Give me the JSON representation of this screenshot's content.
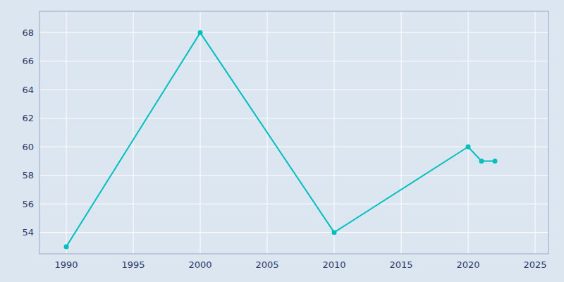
{
  "chart_data": {
    "type": "line",
    "x": [
      1990,
      2000,
      2010,
      2020,
      2021,
      2022
    ],
    "values": [
      53,
      68,
      54,
      60,
      59,
      59
    ],
    "color": "#00BFBF",
    "marker": "circle",
    "xlim": [
      1988,
      2026
    ],
    "ylim": [
      52.5,
      69.5
    ],
    "xticks": [
      1990,
      1995,
      2000,
      2005,
      2010,
      2015,
      2020,
      2025
    ],
    "yticks": [
      54,
      56,
      58,
      60,
      62,
      64,
      66,
      68
    ],
    "grid": true
  }
}
